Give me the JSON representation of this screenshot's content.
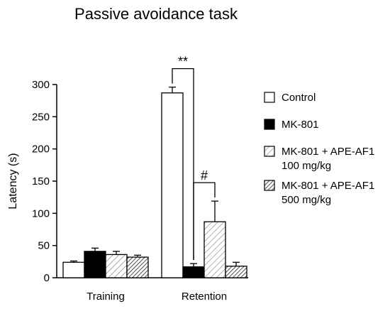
{
  "chart_data": {
    "type": "bar",
    "title": "Passive avoidance task",
    "xlabel": "",
    "ylabel": "Latency (s)",
    "ylim": [
      0,
      300
    ],
    "yticks": [
      0,
      50,
      100,
      150,
      200,
      250,
      300
    ],
    "categories": [
      "Training",
      "Retention"
    ],
    "series": [
      {
        "name": "Control",
        "values": [
          24,
          287
        ],
        "errors": [
          2,
          9
        ],
        "fill": "white"
      },
      {
        "name": "MK-801",
        "values": [
          41,
          17
        ],
        "errors": [
          5,
          5
        ],
        "fill": "black"
      },
      {
        "name": "MK-801 + APE-AF1 100 mg/kg",
        "values": [
          36,
          87
        ],
        "errors": [
          5,
          32
        ],
        "fill": "hatch-light"
      },
      {
        "name": "MK-801 + APE-AF1 500 mg/kg",
        "values": [
          32,
          18
        ],
        "errors": [
          3,
          6
        ],
        "fill": "hatch-dense"
      }
    ],
    "legend": {
      "position": "right",
      "entries": [
        {
          "lines": [
            "Control"
          ]
        },
        {
          "lines": [
            "MK-801"
          ]
        },
        {
          "lines": [
            "MK-801 + APE-AF1",
            "100 mg/kg"
          ]
        },
        {
          "lines": [
            "MK-801 + APE-AF1",
            "500 mg/kg"
          ]
        }
      ]
    },
    "annotations": [
      {
        "text": "**",
        "category": "Retention",
        "between": [
          "Control",
          "MK-801"
        ]
      },
      {
        "text": "#",
        "category": "Retention",
        "between": [
          "MK-801",
          "MK-801 + APE-AF1 100 mg/kg"
        ]
      }
    ],
    "grid": false
  }
}
